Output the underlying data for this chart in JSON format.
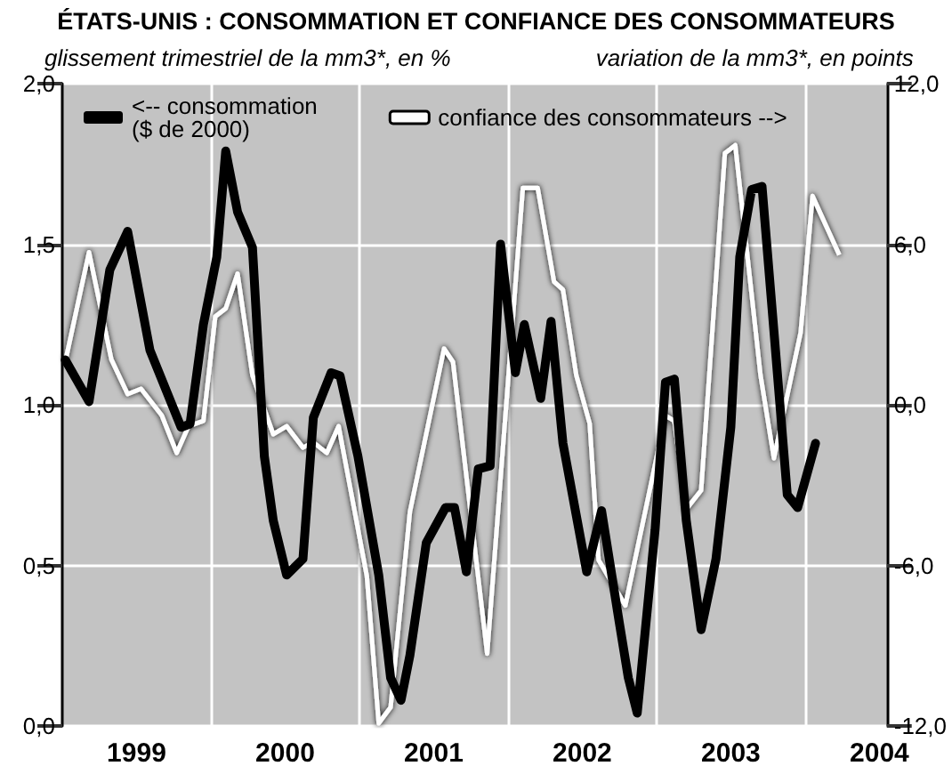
{
  "chart_data": {
    "type": "line",
    "title": "ÉTATS-UNIS : CONSOMMATION ET CONFIANCE DES CONSOMMATEURS",
    "ylabel": "glissement trimestriel de la mm3*, en %",
    "y2label": "variation de la mm3*, en points",
    "xlim": [
      1999,
      2004.55
    ],
    "xticks": [
      {
        "value": 1999.5,
        "label": "1999"
      },
      {
        "value": 2000,
        "label": null
      },
      {
        "value": 2000.5,
        "label": "2000"
      },
      {
        "value": 2001,
        "label": null
      },
      {
        "value": 2001.5,
        "label": "2001"
      },
      {
        "value": 2002,
        "label": null
      },
      {
        "value": 2002.5,
        "label": "2002"
      },
      {
        "value": 2003,
        "label": null
      },
      {
        "value": 2003.5,
        "label": "2003"
      },
      {
        "value": 2004,
        "label": null
      },
      {
        "value": 2004.5,
        "label": "2004"
      }
    ],
    "ylim": [
      0,
      2
    ],
    "yticks": [
      {
        "value": 0,
        "label": "0,0"
      },
      {
        "value": 0.5,
        "label": "0,5"
      },
      {
        "value": 1,
        "label": "1,0"
      },
      {
        "value": 1.5,
        "label": "1,5"
      },
      {
        "value": 2,
        "label": "2,0"
      }
    ],
    "y2lim": [
      -12,
      12
    ],
    "y2ticks": [
      {
        "value": -12,
        "label": "-12,0"
      },
      {
        "value": -6,
        "label": "-6,0"
      },
      {
        "value": 0,
        "label": "0,0"
      },
      {
        "value": 6,
        "label": "6,0"
      },
      {
        "value": 12,
        "label": "12,0"
      }
    ],
    "grid": true,
    "legend": "top",
    "line_style": "solid",
    "series": [
      {
        "name": "<-- consommation\n($ de 2000)",
        "color": "#000000",
        "x": [
          1999.02,
          1999.18,
          1999.32,
          1999.44,
          1999.59,
          1999.8,
          1999.86,
          1999.95,
          2000.04,
          2000.1,
          2000.18,
          2000.28,
          2000.36,
          2000.42,
          2000.51,
          2000.62,
          2000.69,
          2000.81,
          2000.87,
          2000.99,
          2001.13,
          2001.21,
          2001.28,
          2001.34,
          2001.45,
          2001.58,
          2001.64,
          2001.72,
          2001.8,
          2001.88,
          2001.95,
          2002.05,
          2002.11,
          2002.22,
          2002.29,
          2002.37,
          2002.53,
          2002.63,
          2002.75,
          2002.81,
          2002.87,
          2002.99,
          2003.06,
          2003.12,
          2003.2,
          2003.3,
          2003.4,
          2003.5,
          2003.56,
          2003.64,
          2003.71,
          2003.79,
          2003.88,
          2003.95,
          2004.07
        ],
        "values": [
          1.14,
          1.01,
          1.42,
          1.54,
          1.17,
          0.93,
          0.94,
          1.25,
          1.46,
          1.79,
          1.6,
          1.49,
          0.84,
          0.64,
          0.47,
          0.52,
          0.96,
          1.1,
          1.09,
          0.84,
          0.47,
          0.15,
          0.08,
          0.22,
          0.57,
          0.68,
          0.68,
          0.48,
          0.8,
          0.81,
          1.5,
          1.1,
          1.25,
          1.02,
          1.26,
          0.88,
          0.48,
          0.67,
          0.32,
          0.15,
          0.04,
          0.61,
          1.07,
          1.08,
          0.64,
          0.3,
          0.52,
          0.93,
          1.46,
          1.67,
          1.68,
          1.23,
          0.72,
          0.68,
          0.88
        ]
      },
      {
        "name": "confiance des consommateurs -->",
        "color": "#ffffff",
        "axis": "y2",
        "x": [
          1999.02,
          1999.18,
          1999.33,
          1999.44,
          1999.53,
          1999.67,
          1999.77,
          1999.85,
          1999.95,
          2000.03,
          2000.1,
          2000.18,
          2000.28,
          2000.42,
          2000.51,
          2000.62,
          2000.69,
          2000.78,
          2000.86,
          2001.05,
          2001.13,
          2001.21,
          2001.34,
          2001.57,
          2001.63,
          2001.86,
          2002.1,
          2002.2,
          2002.31,
          2002.37,
          2002.46,
          2002.55,
          2002.61,
          2002.79,
          2003.06,
          2003.12,
          2003.2,
          2003.3,
          2003.46,
          2003.53,
          2003.7,
          2003.79,
          2003.97,
          2004.05,
          2004.23
        ],
        "values": [
          1.6,
          5.7,
          1.7,
          0.4,
          0.6,
          -0.4,
          -1.8,
          -0.8,
          -0.6,
          3.3,
          3.6,
          4.9,
          1.1,
          -1.1,
          -0.8,
          -1.6,
          -1.4,
          -1.8,
          -0.8,
          -6.4,
          -11.9,
          -11.3,
          -4.0,
          2.1,
          1.6,
          -9.3,
          8.1,
          8.1,
          4.6,
          4.3,
          1.1,
          -0.7,
          -5.8,
          -7.5,
          -0.4,
          -0.6,
          -3.9,
          -3.2,
          9.4,
          9.7,
          1.1,
          -2.0,
          2.7,
          7.8,
          5.6
        ]
      }
    ]
  }
}
